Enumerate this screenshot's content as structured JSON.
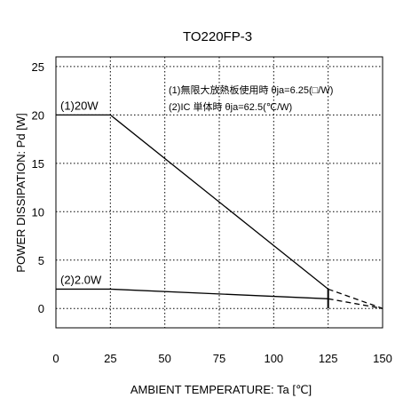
{
  "chart_data": {
    "type": "line",
    "title": "TO220FP-3",
    "xlabel": "AMBIENT TEMPERATURE: Ta [℃]",
    "ylabel": "POWER DISSIPATION: Pd [W]",
    "xlim": [
      0,
      150
    ],
    "ylim": [
      -2,
      26
    ],
    "xticks": [
      "0",
      "25",
      "50",
      "75",
      "100",
      "125",
      "150"
    ],
    "yticks": [
      "0",
      "5",
      "10",
      "15",
      "20",
      "25"
    ],
    "grid": true,
    "annotations": [
      "(1)無限大放熱板使用時 θja=6.25(□/W)",
      "(2)IC 単体時 θja=62.5(℃/W)"
    ],
    "series": [
      {
        "name": "(1)20W",
        "x": [
          0,
          25,
          125,
          150
        ],
        "y": [
          20,
          20,
          2,
          0
        ]
      },
      {
        "name": "(2)2.0W",
        "x": [
          0,
          25,
          125,
          150
        ],
        "y": [
          2,
          2,
          1,
          0
        ]
      }
    ],
    "dashed_from_x": 125
  }
}
